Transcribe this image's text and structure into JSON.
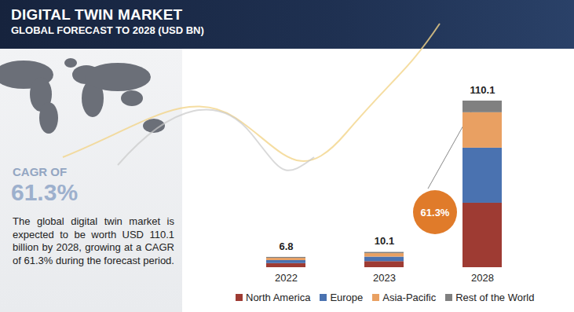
{
  "chart_data": {
    "type": "bar",
    "title": "DIGITAL TWIN MARKET",
    "subtitle": "GLOBAL FORECAST TO 2028 (USD BN)",
    "categories": [
      "2022",
      "2023",
      "2028"
    ],
    "series": [
      {
        "name": "North America",
        "color": "#9e3b33",
        "values": [
          2.7,
          4.0,
          42.6
        ]
      },
      {
        "name": "Europe",
        "color": "#4a72b0",
        "values": [
          2.0,
          3.0,
          36.4
        ]
      },
      {
        "name": "Asia-Pacific",
        "color": "#e9a062",
        "values": [
          1.5,
          2.3,
          23.4
        ]
      },
      {
        "name": "Rest of the World",
        "color": "#808080",
        "values": [
          0.6,
          0.8,
          7.7
        ]
      }
    ],
    "totals": [
      6.8,
      10.1,
      110.1
    ],
    "stacked": true,
    "legend": "bottom",
    "tick_labels": "x",
    "annotations": {
      "cagr_label": "CAGR OF",
      "cagr_value": "61.3%",
      "bubble": "61.3%",
      "description": "The global digital twin market is expected to be worth USD 110.1 billion by 2028, growing at a CAGR of 61.3% during the forecast period."
    }
  }
}
